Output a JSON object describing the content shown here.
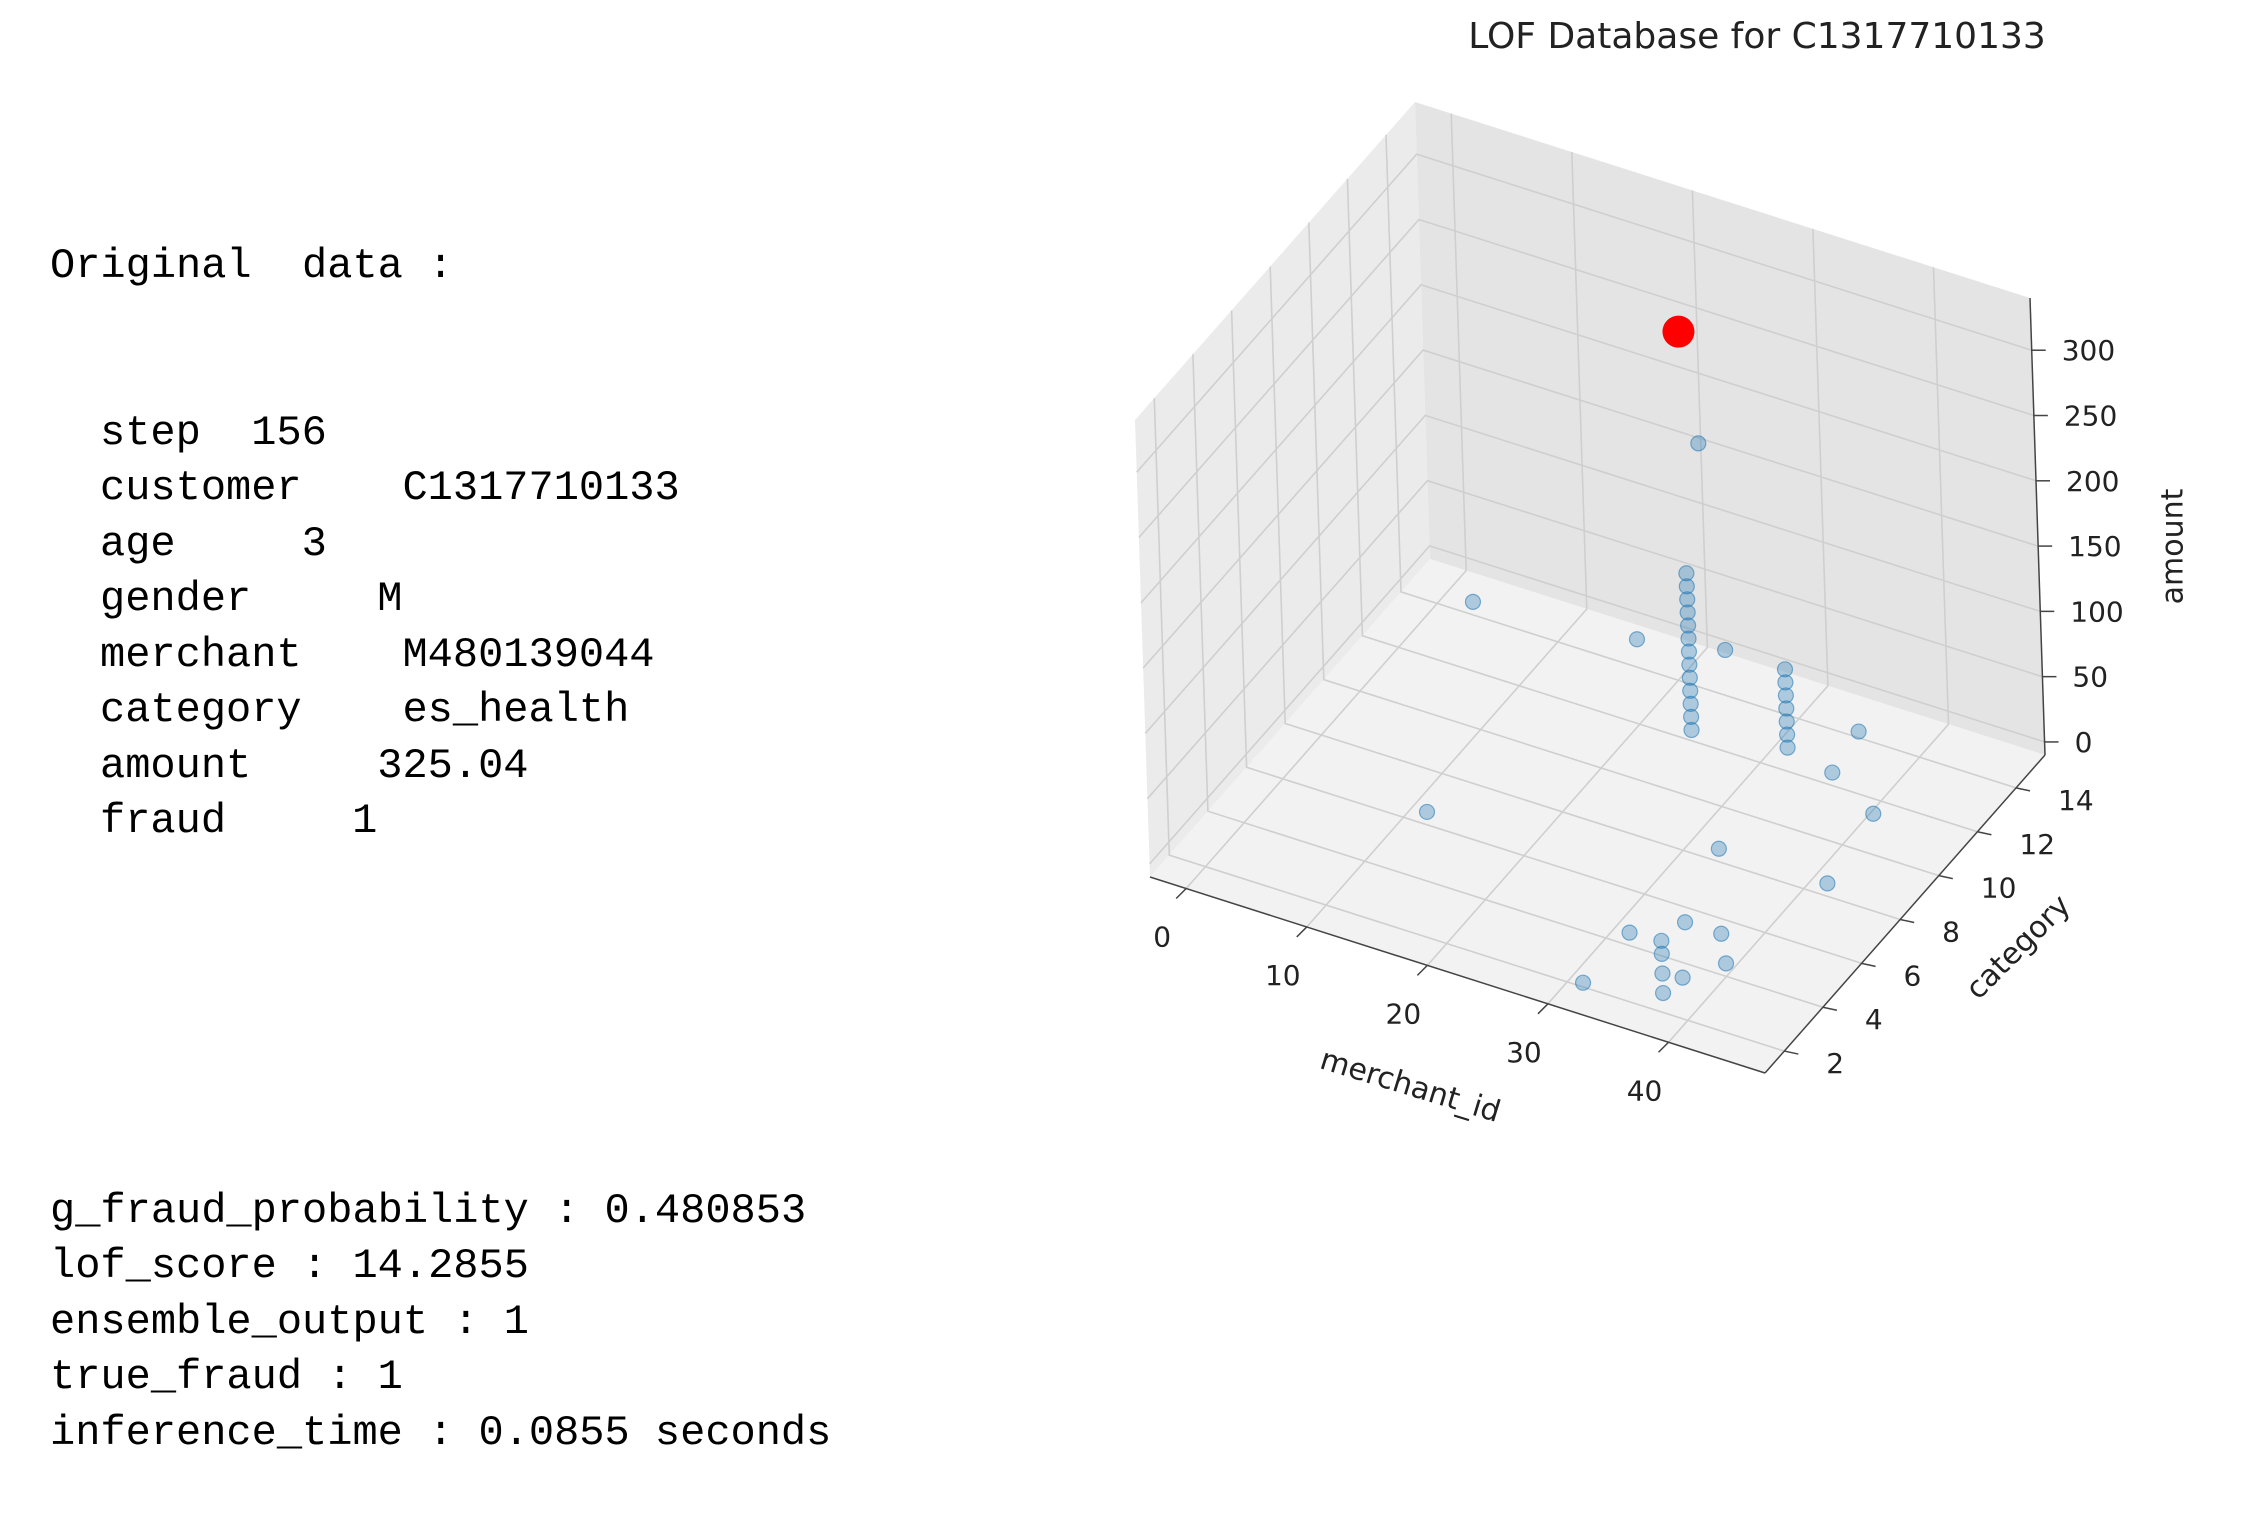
{
  "original": {
    "header": "Original  data :",
    "fields": [
      {
        "key": "step",
        "sep": "  ",
        "value": "156"
      },
      {
        "key": "customer",
        "sep": "    ",
        "value": "C1317710133"
      },
      {
        "key": "age",
        "sep": "     ",
        "value": "3"
      },
      {
        "key": "gender",
        "sep": "     ",
        "value": "M"
      },
      {
        "key": "merchant",
        "sep": "    ",
        "value": "M480139044"
      },
      {
        "key": "category",
        "sep": "    ",
        "value": "es_health"
      },
      {
        "key": "amount",
        "sep": "     ",
        "value": "325.04"
      },
      {
        "key": "fraud",
        "sep": "     ",
        "value": "1"
      }
    ]
  },
  "metrics": [
    {
      "key": "g_fraud_probability",
      "value": "0.480853"
    },
    {
      "key": "lof_score",
      "value": "14.2855"
    },
    {
      "key": "ensemble_output",
      "value": "1"
    },
    {
      "key": "true_fraud",
      "value": "1"
    },
    {
      "key": "inference_time",
      "value": "0.0855 seconds"
    }
  ],
  "chart_data": {
    "type": "scatter",
    "projection": "3d",
    "title": "LOF Database for C1317710133",
    "xlabel": "merchant_id",
    "ylabel": "category",
    "zlabel": "amount",
    "xlim": [
      -3,
      48
    ],
    "ylim": [
      1,
      15.5
    ],
    "zlim": [
      -10,
      340
    ],
    "xticks": [
      0,
      10,
      20,
      30,
      40
    ],
    "yticks": [
      2,
      4,
      6,
      8,
      10,
      12,
      14
    ],
    "zticks": [
      0,
      50,
      100,
      150,
      200,
      250,
      300
    ],
    "grid": true,
    "colors": {
      "database": "#1f77b4",
      "query": "#ff0000"
    },
    "series": [
      {
        "points": [
          [
            12,
            6,
            0
          ],
          [
            3,
            14,
            0
          ],
          [
            32,
            4,
            0
          ],
          [
            35,
            5,
            0
          ],
          [
            38,
            3,
            0
          ],
          [
            40,
            4,
            0
          ],
          [
            38,
            5,
            0
          ],
          [
            42,
            8,
            0
          ],
          [
            33,
            8,
            0
          ],
          [
            36,
            12,
            0
          ],
          [
            41,
            11,
            0
          ],
          [
            33,
            1,
            15
          ],
          [
            24,
            14,
            25
          ],
          [
            24,
            13,
            200
          ],
          [
            20,
            12,
            55
          ],
          [
            40,
            11,
            60
          ],
          [
            38,
            2,
            5
          ],
          [
            38,
            2,
            20
          ],
          [
            38,
            2,
            35
          ],
          [
            38,
            2,
            45
          ],
          [
            26,
            11,
            20
          ],
          [
            26,
            11,
            30
          ],
          [
            26,
            11,
            40
          ],
          [
            26,
            11,
            50
          ],
          [
            26,
            11,
            60
          ],
          [
            26,
            11,
            70
          ],
          [
            26,
            11,
            80
          ],
          [
            26,
            11,
            90
          ],
          [
            26,
            11,
            100
          ],
          [
            26,
            11,
            110
          ],
          [
            26,
            11,
            120
          ],
          [
            26,
            11,
            130
          ],
          [
            26,
            11,
            140
          ],
          [
            34,
            11,
            30
          ],
          [
            34,
            11,
            40
          ],
          [
            34,
            11,
            50
          ],
          [
            34,
            11,
            60
          ],
          [
            34,
            11,
            70
          ],
          [
            34,
            11,
            80
          ],
          [
            34,
            11,
            90
          ]
        ]
      },
      {
        "points": [
          [
            26,
            11,
            325.04
          ]
        ]
      }
    ]
  }
}
